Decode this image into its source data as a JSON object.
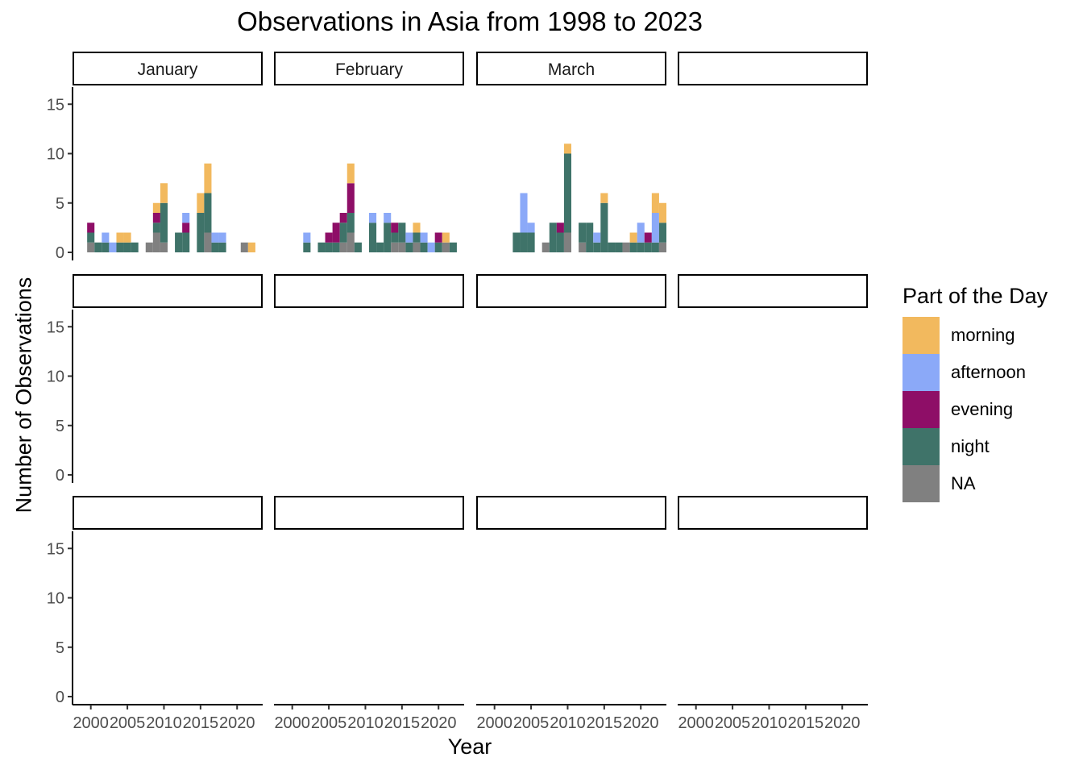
{
  "chart_data": {
    "type": "bar",
    "title": "Observations in Asia from 1998 to 2023",
    "xlabel": "Year",
    "ylabel": "Number of Observations",
    "xlim": [
      1998,
      2023
    ],
    "ylim": [
      0,
      16
    ],
    "x_ticks": [
      2000,
      2005,
      2010,
      2015,
      2020
    ],
    "y_ticks": [
      0,
      5,
      10,
      15
    ],
    "legend": {
      "title": "Part of the Day",
      "placement": "right",
      "categories": [
        {
          "name": "morning",
          "color": "#F2B95E"
        },
        {
          "name": "afternoon",
          "color": "#8BA9F8"
        },
        {
          "name": "evening",
          "color": "#8E0E67"
        },
        {
          "name": "night",
          "color": "#3F7369"
        },
        {
          "name": "NA",
          "color": "#808080"
        }
      ]
    },
    "stack_order": [
      "NA",
      "night",
      "evening",
      "afternoon",
      "morning"
    ],
    "facets": [
      {
        "month": "January",
        "bars": [
          {
            "year": 2000,
            "NA": 1,
            "night": 1,
            "evening": 1
          },
          {
            "year": 2001,
            "night": 1
          },
          {
            "year": 2002,
            "night": 1,
            "afternoon": 1
          },
          {
            "year": 2003,
            "afternoon": 1
          },
          {
            "year": 2004,
            "night": 1,
            "morning": 1
          },
          {
            "year": 2005,
            "night": 1,
            "morning": 1
          },
          {
            "year": 2006,
            "night": 1
          },
          {
            "year": 2008,
            "NA": 1
          },
          {
            "year": 2009,
            "NA": 2,
            "night": 1,
            "evening": 1,
            "morning": 1
          },
          {
            "year": 2010,
            "NA": 1,
            "night": 4,
            "morning": 2
          },
          {
            "year": 2012,
            "night": 2
          },
          {
            "year": 2013,
            "night": 2,
            "evening": 1,
            "afternoon": 1
          },
          {
            "year": 2015,
            "night": 4,
            "morning": 2
          },
          {
            "year": 2016,
            "NA": 2,
            "night": 4,
            "morning": 3
          },
          {
            "year": 2017,
            "night": 1,
            "afternoon": 1
          },
          {
            "year": 2018,
            "night": 1,
            "afternoon": 1
          },
          {
            "year": 2021,
            "NA": 1
          },
          {
            "year": 2022,
            "morning": 1
          }
        ]
      },
      {
        "month": "February",
        "bars": [
          {
            "year": 2002,
            "night": 1,
            "afternoon": 1
          },
          {
            "year": 2004,
            "night": 1
          },
          {
            "year": 2005,
            "night": 1,
            "evening": 1
          },
          {
            "year": 2006,
            "night": 1,
            "evening": 2
          },
          {
            "year": 2007,
            "NA": 1,
            "night": 2,
            "evening": 1
          },
          {
            "year": 2008,
            "NA": 2,
            "night": 2,
            "evening": 3,
            "morning": 2
          },
          {
            "year": 2009,
            "night": 1
          },
          {
            "year": 2011,
            "night": 3,
            "afternoon": 1
          },
          {
            "year": 2012,
            "night": 1
          },
          {
            "year": 2013,
            "night": 3,
            "afternoon": 1
          },
          {
            "year": 2014,
            "NA": 1,
            "night": 1,
            "evening": 1
          },
          {
            "year": 2015,
            "NA": 1,
            "night": 2
          },
          {
            "year": 2016,
            "night": 1,
            "afternoon": 1
          },
          {
            "year": 2017,
            "NA": 1,
            "night": 1,
            "morning": 1
          },
          {
            "year": 2018,
            "night": 1,
            "afternoon": 1
          },
          {
            "year": 2019,
            "afternoon": 1
          },
          {
            "year": 2020,
            "night": 1,
            "evening": 1
          },
          {
            "year": 2021,
            "NA": 1,
            "morning": 1
          },
          {
            "year": 2022,
            "night": 1
          }
        ]
      },
      {
        "month": "March",
        "bars": [
          {
            "year": 2003,
            "night": 2
          },
          {
            "year": 2004,
            "night": 2,
            "afternoon": 4
          },
          {
            "year": 2005,
            "night": 2,
            "afternoon": 1
          },
          {
            "year": 2007,
            "NA": 1
          },
          {
            "year": 2008,
            "night": 3
          },
          {
            "year": 2009,
            "night": 2,
            "evening": 1
          },
          {
            "year": 2010,
            "NA": 2,
            "night": 8,
            "morning": 1
          },
          {
            "year": 2012,
            "NA": 1,
            "night": 2
          },
          {
            "year": 2013,
            "night": 3
          },
          {
            "year": 2014,
            "night": 1,
            "afternoon": 1
          },
          {
            "year": 2015,
            "night": 5,
            "morning": 1
          },
          {
            "year": 2016,
            "night": 1
          },
          {
            "year": 2017,
            "night": 1
          },
          {
            "year": 2018,
            "NA": 1
          },
          {
            "year": 2019,
            "night": 1,
            "morning": 1
          },
          {
            "year": 2020,
            "night": 1,
            "afternoon": 2
          },
          {
            "year": 2021,
            "night": 1,
            "evening": 1
          },
          {
            "year": 2022,
            "night": 1,
            "afternoon": 3,
            "morning": 2
          },
          {
            "year": 2023,
            "NA": 1,
            "night": 2,
            "morning": 2
          }
        ]
      }
    ]
  }
}
